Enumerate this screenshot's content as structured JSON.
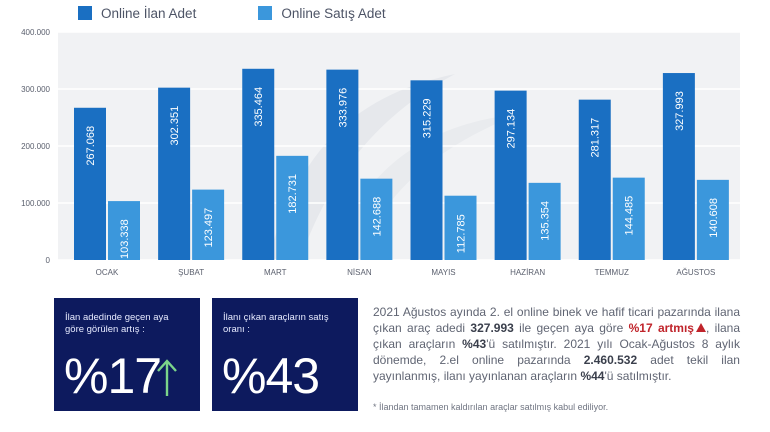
{
  "colors": {
    "series1": "#1a6fc2",
    "series2": "#3b97dc",
    "cardBg": "#0d1a5e",
    "accentRed": "#c0242b",
    "arrowGreen": "#7bd48a"
  },
  "legend": {
    "item1": "Online İlan Adet",
    "item2": "Online Satış Adet"
  },
  "chart_data": {
    "type": "bar",
    "categories": [
      "OCAK",
      "ŞUBAT",
      "MART",
      "NİSAN",
      "MAYIS",
      "HAZİRAN",
      "TEMMUZ",
      "AĞUSTOS"
    ],
    "series": [
      {
        "name": "Online İlan Adet",
        "values": [
          267068,
          302351,
          335464,
          333976,
          315229,
          297134,
          281317,
          327993
        ],
        "labels": [
          "267.068",
          "302.351",
          "335.464",
          "333.976",
          "315.229",
          "297.134",
          "281.317",
          "327.993"
        ]
      },
      {
        "name": "Online Satış Adet",
        "values": [
          103338,
          123497,
          182731,
          142688,
          112785,
          135354,
          144485,
          140608
        ],
        "labels": [
          "103.338",
          "123.497",
          "182.731",
          "142.688",
          "112.785",
          "135.354",
          "144.485",
          "140.608"
        ]
      }
    ],
    "yticks": [
      0,
      100000,
      200000,
      300000,
      400000
    ],
    "ytick_labels": [
      "0",
      "100.000",
      "200.000",
      "300.000",
      "400.000"
    ],
    "ylim": [
      0,
      400000
    ],
    "title": "",
    "xlabel": "",
    "ylabel": "",
    "grid": true,
    "legend_position": "top-left"
  },
  "cards": [
    {
      "label": "İlan adedinde geçen aya göre görülen artış :",
      "value": "%17",
      "icon": "arrow-up-icon"
    },
    {
      "label": "İlanı çıkan araçların satış oranı :",
      "value": "%43"
    }
  ],
  "summary": {
    "p1": "2021 Ağustos ayında 2. el online binek ve hafif ticari pazarında ilana çıkan araç adedi ",
    "b1": "327.993",
    "p2": " ile geçen aya göre ",
    "red1": "%17 artmış",
    "p3": ", ilana çıkan araçların ",
    "b2": "%43",
    "p4": "'ü satılmıştır. 2021 yılı Ocak-Ağustos 8 aylık dönemde, 2.el online pazarında ",
    "b3": "2.460.532",
    "p5": " adet tekil ilan yayınlanmış, ilanı yayınlanan araçların ",
    "b4": "%44",
    "p6": "'ü satılmıştır."
  },
  "footnote": "* İlandan tamamen kaldırılan araçlar satılmış kabul ediliyor."
}
